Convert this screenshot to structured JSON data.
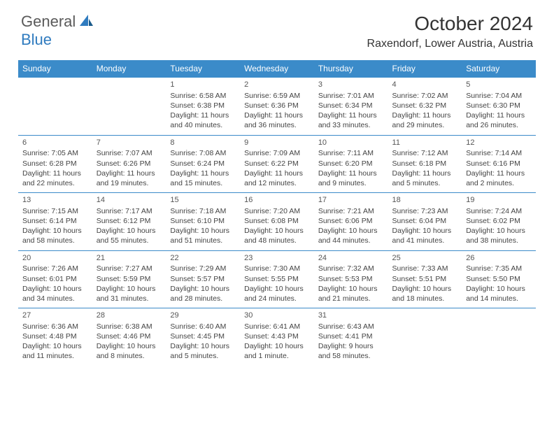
{
  "logo": {
    "general": "General",
    "blue": "Blue"
  },
  "title": "October 2024",
  "location": "Raxendorf, Lower Austria, Austria",
  "colors": {
    "header_bg": "#3b8bc9",
    "header_text": "#ffffff",
    "text": "#444444",
    "border": "#3b8bc9",
    "logo_gray": "#5a5a5a",
    "logo_blue": "#2f7bbf"
  },
  "daysOfWeek": [
    "Sunday",
    "Monday",
    "Tuesday",
    "Wednesday",
    "Thursday",
    "Friday",
    "Saturday"
  ],
  "weeks": [
    [
      null,
      null,
      {
        "n": "1",
        "sr": "Sunrise: 6:58 AM",
        "ss": "Sunset: 6:38 PM",
        "dl": "Daylight: 11 hours and 40 minutes."
      },
      {
        "n": "2",
        "sr": "Sunrise: 6:59 AM",
        "ss": "Sunset: 6:36 PM",
        "dl": "Daylight: 11 hours and 36 minutes."
      },
      {
        "n": "3",
        "sr": "Sunrise: 7:01 AM",
        "ss": "Sunset: 6:34 PM",
        "dl": "Daylight: 11 hours and 33 minutes."
      },
      {
        "n": "4",
        "sr": "Sunrise: 7:02 AM",
        "ss": "Sunset: 6:32 PM",
        "dl": "Daylight: 11 hours and 29 minutes."
      },
      {
        "n": "5",
        "sr": "Sunrise: 7:04 AM",
        "ss": "Sunset: 6:30 PM",
        "dl": "Daylight: 11 hours and 26 minutes."
      }
    ],
    [
      {
        "n": "6",
        "sr": "Sunrise: 7:05 AM",
        "ss": "Sunset: 6:28 PM",
        "dl": "Daylight: 11 hours and 22 minutes."
      },
      {
        "n": "7",
        "sr": "Sunrise: 7:07 AM",
        "ss": "Sunset: 6:26 PM",
        "dl": "Daylight: 11 hours and 19 minutes."
      },
      {
        "n": "8",
        "sr": "Sunrise: 7:08 AM",
        "ss": "Sunset: 6:24 PM",
        "dl": "Daylight: 11 hours and 15 minutes."
      },
      {
        "n": "9",
        "sr": "Sunrise: 7:09 AM",
        "ss": "Sunset: 6:22 PM",
        "dl": "Daylight: 11 hours and 12 minutes."
      },
      {
        "n": "10",
        "sr": "Sunrise: 7:11 AM",
        "ss": "Sunset: 6:20 PM",
        "dl": "Daylight: 11 hours and 9 minutes."
      },
      {
        "n": "11",
        "sr": "Sunrise: 7:12 AM",
        "ss": "Sunset: 6:18 PM",
        "dl": "Daylight: 11 hours and 5 minutes."
      },
      {
        "n": "12",
        "sr": "Sunrise: 7:14 AM",
        "ss": "Sunset: 6:16 PM",
        "dl": "Daylight: 11 hours and 2 minutes."
      }
    ],
    [
      {
        "n": "13",
        "sr": "Sunrise: 7:15 AM",
        "ss": "Sunset: 6:14 PM",
        "dl": "Daylight: 10 hours and 58 minutes."
      },
      {
        "n": "14",
        "sr": "Sunrise: 7:17 AM",
        "ss": "Sunset: 6:12 PM",
        "dl": "Daylight: 10 hours and 55 minutes."
      },
      {
        "n": "15",
        "sr": "Sunrise: 7:18 AM",
        "ss": "Sunset: 6:10 PM",
        "dl": "Daylight: 10 hours and 51 minutes."
      },
      {
        "n": "16",
        "sr": "Sunrise: 7:20 AM",
        "ss": "Sunset: 6:08 PM",
        "dl": "Daylight: 10 hours and 48 minutes."
      },
      {
        "n": "17",
        "sr": "Sunrise: 7:21 AM",
        "ss": "Sunset: 6:06 PM",
        "dl": "Daylight: 10 hours and 44 minutes."
      },
      {
        "n": "18",
        "sr": "Sunrise: 7:23 AM",
        "ss": "Sunset: 6:04 PM",
        "dl": "Daylight: 10 hours and 41 minutes."
      },
      {
        "n": "19",
        "sr": "Sunrise: 7:24 AM",
        "ss": "Sunset: 6:02 PM",
        "dl": "Daylight: 10 hours and 38 minutes."
      }
    ],
    [
      {
        "n": "20",
        "sr": "Sunrise: 7:26 AM",
        "ss": "Sunset: 6:01 PM",
        "dl": "Daylight: 10 hours and 34 minutes."
      },
      {
        "n": "21",
        "sr": "Sunrise: 7:27 AM",
        "ss": "Sunset: 5:59 PM",
        "dl": "Daylight: 10 hours and 31 minutes."
      },
      {
        "n": "22",
        "sr": "Sunrise: 7:29 AM",
        "ss": "Sunset: 5:57 PM",
        "dl": "Daylight: 10 hours and 28 minutes."
      },
      {
        "n": "23",
        "sr": "Sunrise: 7:30 AM",
        "ss": "Sunset: 5:55 PM",
        "dl": "Daylight: 10 hours and 24 minutes."
      },
      {
        "n": "24",
        "sr": "Sunrise: 7:32 AM",
        "ss": "Sunset: 5:53 PM",
        "dl": "Daylight: 10 hours and 21 minutes."
      },
      {
        "n": "25",
        "sr": "Sunrise: 7:33 AM",
        "ss": "Sunset: 5:51 PM",
        "dl": "Daylight: 10 hours and 18 minutes."
      },
      {
        "n": "26",
        "sr": "Sunrise: 7:35 AM",
        "ss": "Sunset: 5:50 PM",
        "dl": "Daylight: 10 hours and 14 minutes."
      }
    ],
    [
      {
        "n": "27",
        "sr": "Sunrise: 6:36 AM",
        "ss": "Sunset: 4:48 PM",
        "dl": "Daylight: 10 hours and 11 minutes."
      },
      {
        "n": "28",
        "sr": "Sunrise: 6:38 AM",
        "ss": "Sunset: 4:46 PM",
        "dl": "Daylight: 10 hours and 8 minutes."
      },
      {
        "n": "29",
        "sr": "Sunrise: 6:40 AM",
        "ss": "Sunset: 4:45 PM",
        "dl": "Daylight: 10 hours and 5 minutes."
      },
      {
        "n": "30",
        "sr": "Sunrise: 6:41 AM",
        "ss": "Sunset: 4:43 PM",
        "dl": "Daylight: 10 hours and 1 minute."
      },
      {
        "n": "31",
        "sr": "Sunrise: 6:43 AM",
        "ss": "Sunset: 4:41 PM",
        "dl": "Daylight: 9 hours and 58 minutes."
      },
      null,
      null
    ]
  ]
}
